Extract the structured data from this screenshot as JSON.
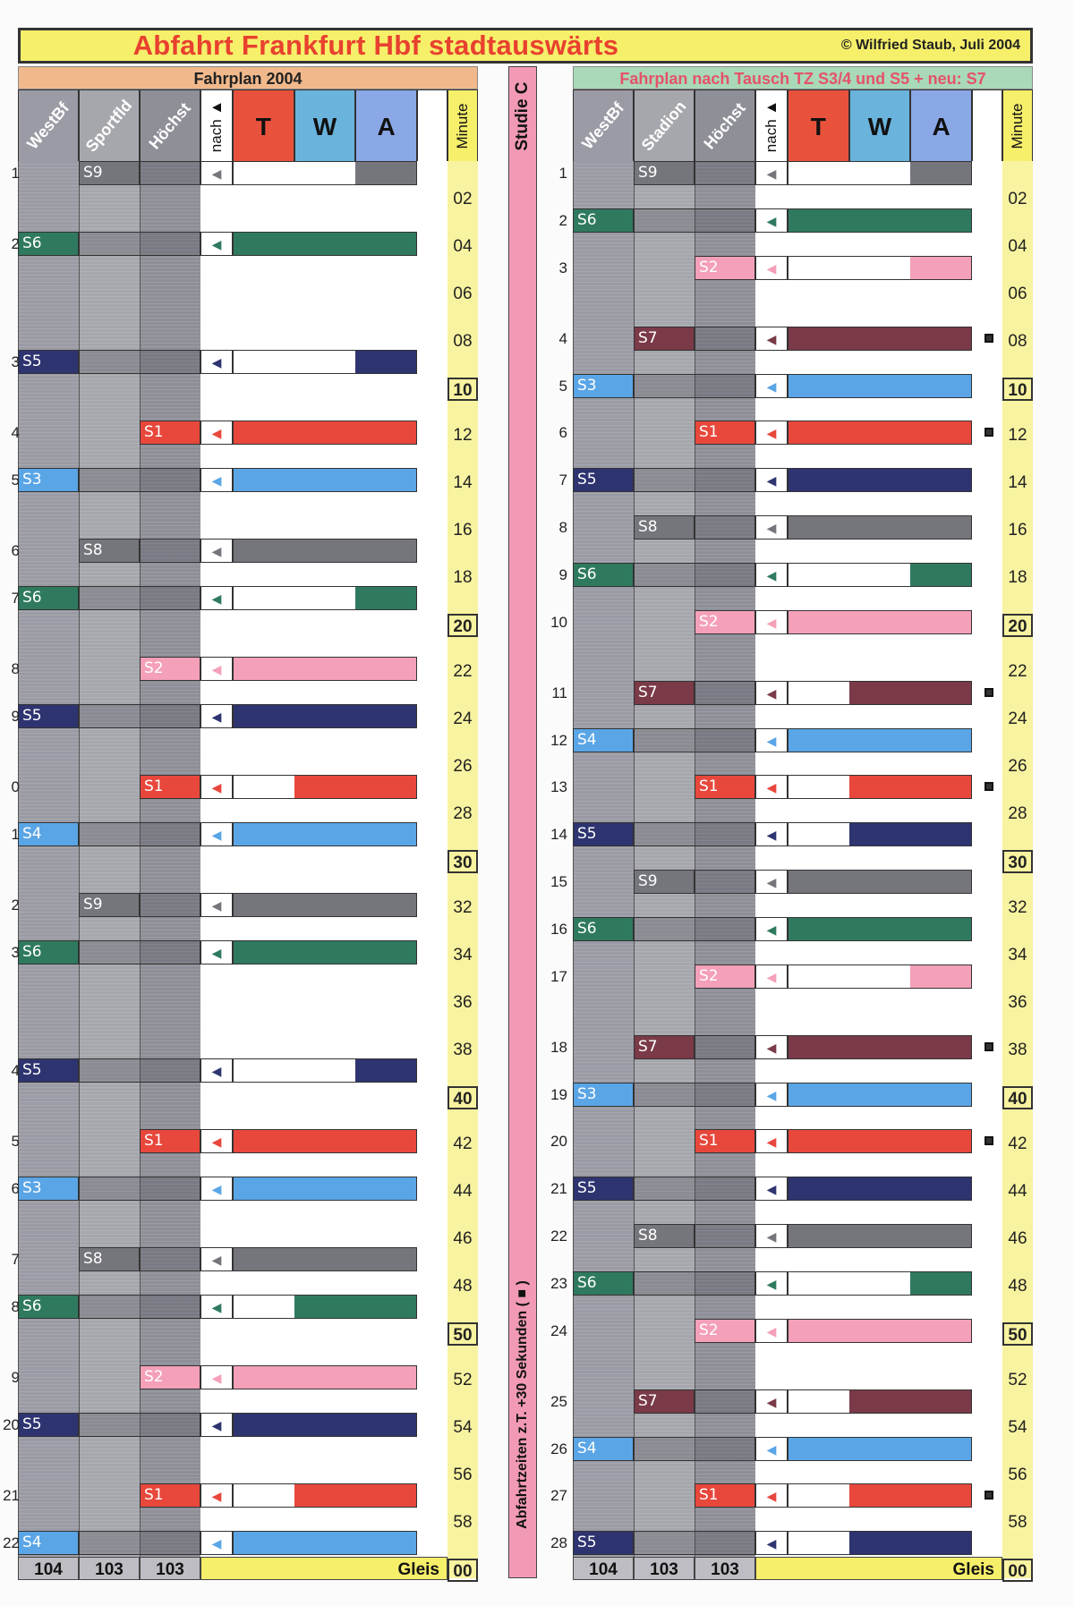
{
  "title": "Abfahrt Frankfurt Hbf stadtauswärts",
  "copyright": "© Wilfried Staub, Juli 2004",
  "middle_label": "Studie C",
  "middle_note": "Abfahrtzeiten z.T. +30 Sekunden ( ■ )",
  "colors": {
    "S1": "#e8473c",
    "S2": "#f4a0b8",
    "S3": "#5aa5e6",
    "S4": "#5aa5e6",
    "S5": "#2e3470",
    "S6": "#2f7a5e",
    "S7": "#7a3a48",
    "S8": "#75767c",
    "S9": "#75767c"
  },
  "panels": [
    {
      "subtitle": "Fahrplan 2004",
      "columns": [
        "WestBf",
        "Sportfld",
        "Höchst",
        "nach ▲",
        "T",
        "W",
        "A",
        "Minute"
      ],
      "gleis": [
        "104",
        "103",
        "103",
        "Gleis"
      ],
      "index_labels": [
        "1",
        "2",
        "3",
        "4",
        "5",
        "6",
        "7",
        "8",
        "9",
        "0",
        "1",
        "2",
        "3",
        "4",
        "5",
        "6",
        "7",
        "8",
        "9",
        "20",
        "21",
        "22"
      ],
      "rows": [
        {
          "line": "S9",
          "col": 1,
          "slot": 0,
          "bar": [
            0,
            0,
            1
          ]
        },
        {
          "line": "S6",
          "col": 0,
          "slot": 3,
          "bar": [
            1,
            1,
            1
          ]
        },
        {
          "line": "S5",
          "col": 0,
          "slot": 8,
          "bar": [
            0,
            0,
            1
          ]
        },
        {
          "line": "S1",
          "col": 2,
          "slot": 11,
          "bar": [
            1,
            1,
            1
          ]
        },
        {
          "line": "S3",
          "col": 0,
          "slot": 13,
          "bar": [
            1,
            1,
            1
          ]
        },
        {
          "line": "S8",
          "col": 1,
          "slot": 16,
          "bar": [
            1,
            1,
            1
          ]
        },
        {
          "line": "S6",
          "col": 0,
          "slot": 18,
          "bar": [
            0,
            0,
            1
          ]
        },
        {
          "line": "S2",
          "col": 2,
          "slot": 21,
          "bar": [
            1,
            1,
            1
          ]
        },
        {
          "line": "S5",
          "col": 0,
          "slot": 23,
          "bar": [
            1,
            1,
            1
          ]
        },
        {
          "line": "S1",
          "col": 2,
          "slot": 26,
          "bar": [
            0,
            1,
            1
          ]
        },
        {
          "line": "S4",
          "col": 0,
          "slot": 28,
          "bar": [
            1,
            1,
            1
          ]
        },
        {
          "line": "S9",
          "col": 1,
          "slot": 31,
          "bar": [
            1,
            1,
            1
          ]
        },
        {
          "line": "S6",
          "col": 0,
          "slot": 33,
          "bar": [
            1,
            1,
            1
          ]
        },
        {
          "line": "S5",
          "col": 0,
          "slot": 38,
          "bar": [
            0,
            0,
            1
          ]
        },
        {
          "line": "S1",
          "col": 2,
          "slot": 41,
          "bar": [
            1,
            1,
            1
          ]
        },
        {
          "line": "S3",
          "col": 0,
          "slot": 43,
          "bar": [
            1,
            1,
            1
          ]
        },
        {
          "line": "S8",
          "col": 1,
          "slot": 46,
          "bar": [
            1,
            1,
            1
          ]
        },
        {
          "line": "S6",
          "col": 0,
          "slot": 48,
          "bar": [
            0,
            1,
            1
          ]
        },
        {
          "line": "S2",
          "col": 2,
          "slot": 51,
          "bar": [
            1,
            1,
            1
          ]
        },
        {
          "line": "S5",
          "col": 0,
          "slot": 53,
          "bar": [
            1,
            1,
            1
          ]
        },
        {
          "line": "S1",
          "col": 2,
          "slot": 56,
          "bar": [
            0,
            1,
            1
          ]
        },
        {
          "line": "S4",
          "col": 0,
          "slot": 58,
          "bar": [
            1,
            1,
            1
          ]
        }
      ],
      "dots": []
    },
    {
      "subtitle": "Fahrplan nach Tausch TZ S3/4 und S5 + neu: S7",
      "columns": [
        "WestBf",
        "Stadion",
        "Höchst",
        "nach ▲",
        "T",
        "W",
        "A",
        "Minute"
      ],
      "gleis": [
        "104",
        "103",
        "103",
        "Gleis"
      ],
      "index_labels": [
        "1",
        "2",
        "3",
        "4",
        "5",
        "6",
        "7",
        "8",
        "9",
        "10",
        "11",
        "12",
        "13",
        "14",
        "15",
        "16",
        "17",
        "18",
        "19",
        "20",
        "21",
        "22",
        "23",
        "24",
        "25",
        "26",
        "27",
        "28"
      ],
      "rows": [
        {
          "line": "S9",
          "col": 1,
          "slot": 0,
          "bar": [
            0,
            0,
            1
          ]
        },
        {
          "line": "S6",
          "col": 0,
          "slot": 2,
          "bar": [
            1,
            1,
            1
          ]
        },
        {
          "line": "S2",
          "col": 2,
          "slot": 4,
          "bar": [
            0,
            0,
            1
          ]
        },
        {
          "line": "S7",
          "col": 1,
          "slot": 7,
          "bar": [
            1,
            1,
            1
          ]
        },
        {
          "line": "S3",
          "col": 0,
          "slot": 9,
          "bar": [
            1,
            1,
            1
          ]
        },
        {
          "line": "S1",
          "col": 2,
          "slot": 11,
          "bar": [
            1,
            1,
            1
          ]
        },
        {
          "line": "S5",
          "col": 0,
          "slot": 13,
          "bar": [
            1,
            1,
            1
          ]
        },
        {
          "line": "S8",
          "col": 1,
          "slot": 15,
          "bar": [
            1,
            1,
            1
          ]
        },
        {
          "line": "S6",
          "col": 0,
          "slot": 17,
          "bar": [
            0,
            0,
            1
          ]
        },
        {
          "line": "S2",
          "col": 2,
          "slot": 19,
          "bar": [
            1,
            1,
            1
          ]
        },
        {
          "line": "S7",
          "col": 1,
          "slot": 22,
          "bar": [
            0,
            1,
            1
          ]
        },
        {
          "line": "S4",
          "col": 0,
          "slot": 24,
          "bar": [
            1,
            1,
            1
          ]
        },
        {
          "line": "S1",
          "col": 2,
          "slot": 26,
          "bar": [
            0,
            1,
            1
          ]
        },
        {
          "line": "S5",
          "col": 0,
          "slot": 28,
          "bar": [
            0,
            1,
            1
          ]
        },
        {
          "line": "S9",
          "col": 1,
          "slot": 30,
          "bar": [
            1,
            1,
            1
          ]
        },
        {
          "line": "S6",
          "col": 0,
          "slot": 32,
          "bar": [
            1,
            1,
            1
          ]
        },
        {
          "line": "S2",
          "col": 2,
          "slot": 34,
          "bar": [
            0,
            0,
            1
          ]
        },
        {
          "line": "S7",
          "col": 1,
          "slot": 37,
          "bar": [
            1,
            1,
            1
          ]
        },
        {
          "line": "S3",
          "col": 0,
          "slot": 39,
          "bar": [
            1,
            1,
            1
          ]
        },
        {
          "line": "S1",
          "col": 2,
          "slot": 41,
          "bar": [
            1,
            1,
            1
          ]
        },
        {
          "line": "S5",
          "col": 0,
          "slot": 43,
          "bar": [
            1,
            1,
            1
          ]
        },
        {
          "line": "S8",
          "col": 1,
          "slot": 45,
          "bar": [
            1,
            1,
            1
          ]
        },
        {
          "line": "S6",
          "col": 0,
          "slot": 47,
          "bar": [
            0,
            0,
            1
          ]
        },
        {
          "line": "S2",
          "col": 2,
          "slot": 49,
          "bar": [
            1,
            1,
            1
          ]
        },
        {
          "line": "S7",
          "col": 1,
          "slot": 52,
          "bar": [
            0,
            1,
            1
          ]
        },
        {
          "line": "S4",
          "col": 0,
          "slot": 54,
          "bar": [
            1,
            1,
            1
          ]
        },
        {
          "line": "S1",
          "col": 2,
          "slot": 56,
          "bar": [
            0,
            1,
            1
          ]
        },
        {
          "line": "S5",
          "col": 0,
          "slot": 58,
          "bar": [
            0,
            1,
            1
          ]
        }
      ],
      "dots": [
        7,
        11,
        22,
        26,
        37,
        41,
        56
      ]
    }
  ],
  "minutes": [
    "02",
    "04",
    "06",
    "08",
    "10",
    "12",
    "14",
    "16",
    "18",
    "20",
    "22",
    "24",
    "26",
    "28",
    "30",
    "32",
    "34",
    "36",
    "38",
    "40",
    "42",
    "44",
    "46",
    "48",
    "50",
    "52",
    "54",
    "56",
    "58",
    "00"
  ]
}
